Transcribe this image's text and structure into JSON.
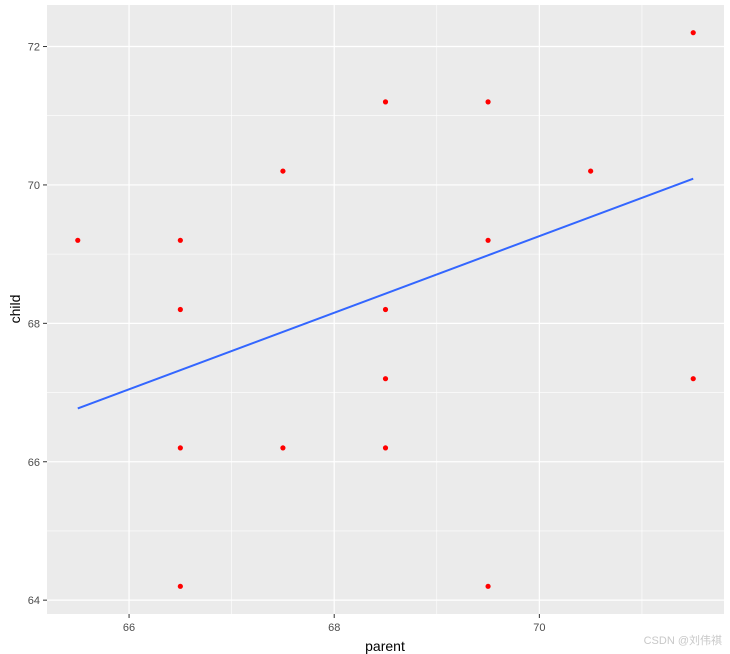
{
  "chart_data": {
    "type": "scatter",
    "xlabel": "parent",
    "ylabel": "child",
    "xlim": [
      65.2,
      71.8
    ],
    "ylim": [
      63.8,
      72.6
    ],
    "xticks": [
      66,
      68,
      70
    ],
    "yticks": [
      64,
      66,
      68,
      70,
      72
    ],
    "grid": true,
    "points": [
      {
        "x": 65.5,
        "y": 69.2
      },
      {
        "x": 66.5,
        "y": 69.2
      },
      {
        "x": 66.5,
        "y": 68.2
      },
      {
        "x": 66.5,
        "y": 66.2
      },
      {
        "x": 66.5,
        "y": 64.2
      },
      {
        "x": 67.5,
        "y": 70.2
      },
      {
        "x": 67.5,
        "y": 66.2
      },
      {
        "x": 68.5,
        "y": 71.2
      },
      {
        "x": 68.5,
        "y": 68.2
      },
      {
        "x": 68.5,
        "y": 67.2
      },
      {
        "x": 68.5,
        "y": 66.2
      },
      {
        "x": 69.5,
        "y": 71.2
      },
      {
        "x": 69.5,
        "y": 69.2
      },
      {
        "x": 69.5,
        "y": 64.2
      },
      {
        "x": 70.5,
        "y": 70.2
      },
      {
        "x": 71.5,
        "y": 72.2
      },
      {
        "x": 71.5,
        "y": 67.2
      }
    ],
    "fit_line": {
      "x": [
        65.5,
        71.5
      ],
      "y": [
        66.77,
        70.09
      ]
    },
    "colors": {
      "panel": "#ebebeb",
      "grid": "#ffffff",
      "points": "#ff0000",
      "line": "#3366ff"
    }
  },
  "watermark": "CSDN @刘伟祺"
}
